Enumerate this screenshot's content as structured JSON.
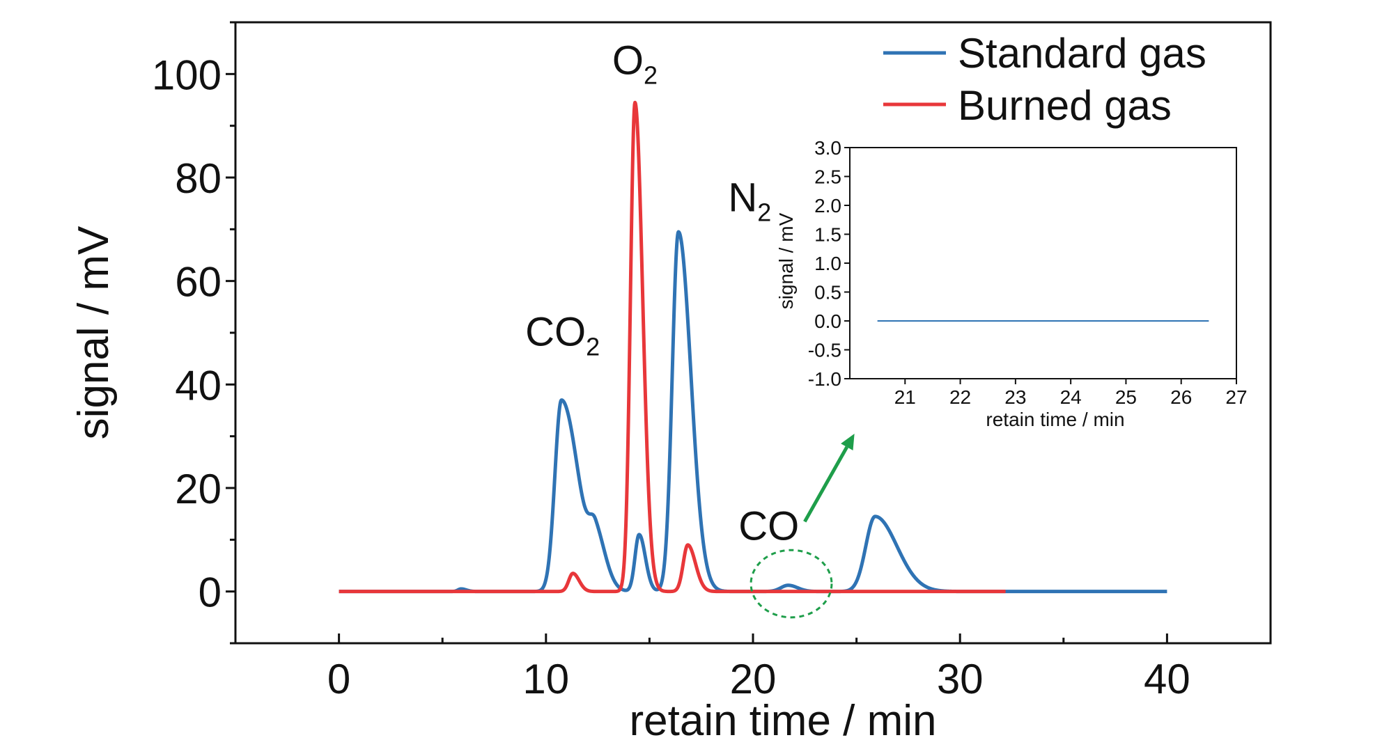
{
  "chart_data": [
    {
      "type": "line",
      "xlabel": "retain time / min",
      "ylabel": "signal / mV",
      "xlim": [
        -5,
        45
      ],
      "ylim": [
        -10,
        110
      ],
      "xticks": [
        0,
        10,
        20,
        30,
        40
      ],
      "yticks": [
        0,
        20,
        40,
        60,
        80,
        100
      ],
      "grid": false,
      "legend": {
        "placement": "top-right",
        "entries": [
          "Standard gas",
          "Burned gas"
        ]
      },
      "series": [
        {
          "name": "Standard gas",
          "color": "#2f73b4",
          "x_range": [
            0,
            40
          ],
          "peaks": [
            {
              "center": 5.9,
              "height": 0.5,
              "width": 0.15,
              "tail": 0.1
            },
            {
              "center": 10.75,
              "height": 37,
              "width": 0.32,
              "tail": 0.5
            },
            {
              "center": 12.4,
              "height": 9,
              "width": 0.3,
              "tail": 0.2
            },
            {
              "center": 14.5,
              "height": 11,
              "width": 0.2,
              "tail": 0.1
            },
            {
              "center": 16.4,
              "height": 69.5,
              "width": 0.3,
              "tail": 0.3
            },
            {
              "center": 21.7,
              "height": 1.2,
              "width": 0.35,
              "tail": 0.1
            },
            {
              "center": 25.9,
              "height": 14.5,
              "width": 0.45,
              "tail": 0.6
            }
          ]
        },
        {
          "name": "Burned gas",
          "color": "#e8373a",
          "x_range": [
            0,
            32.2
          ],
          "peaks": [
            {
              "center": 11.3,
              "height": 3.5,
              "width": 0.2,
              "tail": 0.1
            },
            {
              "center": 14.3,
              "height": 94.5,
              "width": 0.22,
              "tail": 0.15
            },
            {
              "center": 16.85,
              "height": 9,
              "width": 0.22,
              "tail": 0.15
            }
          ]
        }
      ],
      "peak_labels": [
        {
          "text": "CO",
          "subscript": "2",
          "x": 9.0,
          "y": 47.5
        },
        {
          "text": "O",
          "subscript": "2",
          "x": 13.2,
          "y": 100
        },
        {
          "text": "N",
          "subscript": "2",
          "x": 18.8,
          "y": 73.5
        },
        {
          "text": "CO",
          "subscript": "",
          "x": 19.3,
          "y": 10
        }
      ],
      "annotations": [
        {
          "type": "dashed-ellipse",
          "color": "#1e9e4a",
          "center": [
            21.85,
            1.5
          ],
          "radii": [
            1.95,
            6.5
          ]
        },
        {
          "type": "arrow",
          "color": "#1e9e4a",
          "from": [
            22.5,
            13.5
          ],
          "to": [
            24.9,
            30.5
          ]
        }
      ]
    },
    {
      "type": "line",
      "title": "",
      "xlabel": "retain time / min",
      "ylabel": "signal / mV",
      "xlim": [
        20,
        27
      ],
      "ylim": [
        -1.0,
        3.0
      ],
      "xticks": [
        21,
        22,
        23,
        24,
        25,
        26,
        27
      ],
      "yticks": [
        -1.0,
        -0.5,
        0.0,
        0.5,
        1.0,
        1.5,
        2.0,
        2.5,
        3.0
      ],
      "grid": false,
      "series": [
        {
          "name": "Standard gas",
          "color": "#2f73b4",
          "x": [
            20.5,
            26.5
          ],
          "y": [
            0.0,
            0.0
          ]
        }
      ]
    }
  ]
}
